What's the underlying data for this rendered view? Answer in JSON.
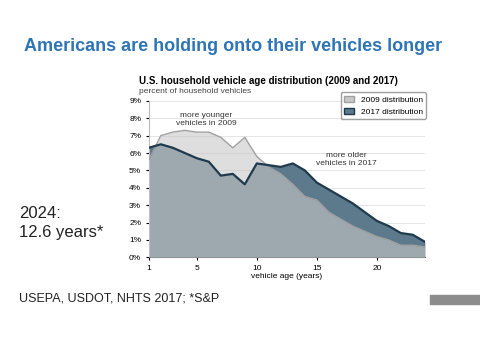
{
  "slide": {
    "title": "Americans are holding onto their vehicles longer",
    "note": "2024:\n12.6 years*",
    "source": "USEPA, USDOT, NHTS 2017; *S&P"
  },
  "chart_data": {
    "type": "area",
    "title": "U.S. household vehicle age distribution (2009 and 2017)",
    "subtitle": "percent of household vehicles",
    "x_label": "vehicle age (years)",
    "x": [
      1,
      2,
      3,
      4,
      5,
      6,
      7,
      8,
      9,
      10,
      11,
      12,
      13,
      14,
      15,
      16,
      17,
      18,
      19,
      20,
      21,
      22,
      23,
      24
    ],
    "series": [
      {
        "name": "2017 distribution",
        "color": "#5d7a8c",
        "values": [
          6.3,
          6.5,
          6.3,
          6.0,
          5.7,
          5.5,
          4.7,
          4.8,
          4.2,
          5.4,
          5.3,
          5.2,
          5.4,
          5.0,
          4.3,
          3.9,
          3.5,
          3.1,
          2.6,
          2.1,
          1.8,
          1.4,
          1.3,
          0.9
        ]
      },
      {
        "name": "2009 distribution",
        "color": "#c8c8c8",
        "values": [
          5.6,
          7.0,
          7.2,
          7.3,
          7.2,
          7.2,
          6.9,
          6.3,
          6.9,
          5.8,
          5.2,
          4.8,
          4.2,
          3.5,
          3.3,
          2.6,
          2.2,
          1.8,
          1.5,
          1.2,
          1.0,
          0.7,
          0.7,
          0.6
        ]
      }
    ],
    "annotations": [
      {
        "text": "more younger\nvehicles in 2009",
        "x": 5.8,
        "y": 7.9
      },
      {
        "text": "more older\nvehicles in 2017",
        "x": 17.5,
        "y": 5.6
      }
    ],
    "xlim": [
      1,
      24
    ],
    "xticks": [
      1,
      5,
      10,
      15,
      20
    ],
    "ylim": [
      0,
      9
    ],
    "yticks": [
      {
        "value": 0,
        "label": "0%"
      },
      {
        "value": 1,
        "label": "1%"
      },
      {
        "value": 2,
        "label": "2%"
      },
      {
        "value": 3,
        "label": "3%"
      },
      {
        "value": 4,
        "label": "4%"
      },
      {
        "value": 5,
        "label": "5%"
      },
      {
        "value": 6,
        "label": "6%"
      },
      {
        "value": 7,
        "label": "7%"
      },
      {
        "value": 8,
        "label": "8%"
      },
      {
        "value": 9,
        "label": "9%"
      }
    ],
    "grid": true,
    "legend": "upper right"
  }
}
